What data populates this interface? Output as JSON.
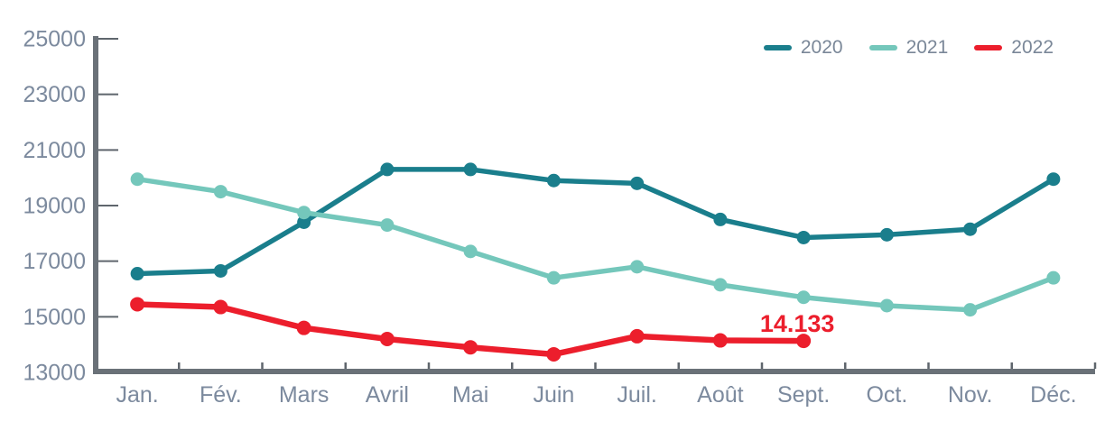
{
  "chart_data": {
    "type": "line",
    "title": "",
    "xlabel": "",
    "ylabel": "",
    "categories": [
      "Jan.",
      "Fév.",
      "Mars",
      "Avril",
      "Mai",
      "Juin",
      "Juil.",
      "Août",
      "Sept.",
      "Oct.",
      "Nov.",
      "Déc."
    ],
    "series": [
      {
        "name": "2020",
        "color": "#1A7E8C",
        "line_width": 5.5,
        "marker_radius": 7.5,
        "values": [
          16550,
          16650,
          18400,
          20300,
          20300,
          19900,
          19800,
          18500,
          17850,
          17950,
          18150,
          19950
        ]
      },
      {
        "name": "2021",
        "color": "#74C7BB",
        "line_width": 5.5,
        "marker_radius": 7.5,
        "values": [
          19950,
          19500,
          18750,
          18300,
          17350,
          16400,
          16800,
          16150,
          15700,
          15400,
          15250,
          16400
        ]
      },
      {
        "name": "2022",
        "color": "#EC1E2C",
        "line_width": 6.5,
        "marker_radius": 8,
        "values": [
          15450,
          15350,
          14600,
          14200,
          13900,
          13650,
          14300,
          14150,
          14133,
          null,
          null,
          null
        ]
      }
    ],
    "ylim": [
      13000,
      25000
    ],
    "yticks": [
      13000,
      15000,
      17000,
      19000,
      21000,
      23000,
      25000
    ],
    "grid": false,
    "legend_position": "top-right",
    "annotation": {
      "text": "14.133",
      "series": "2022",
      "category": "Sept.",
      "value": 14133,
      "color": "#EC1E2C"
    },
    "colors": {
      "axis": "#6A7178",
      "tick": "#5F666D",
      "tick_label": "#7C8A9E",
      "background": "#FFFFFF"
    }
  }
}
